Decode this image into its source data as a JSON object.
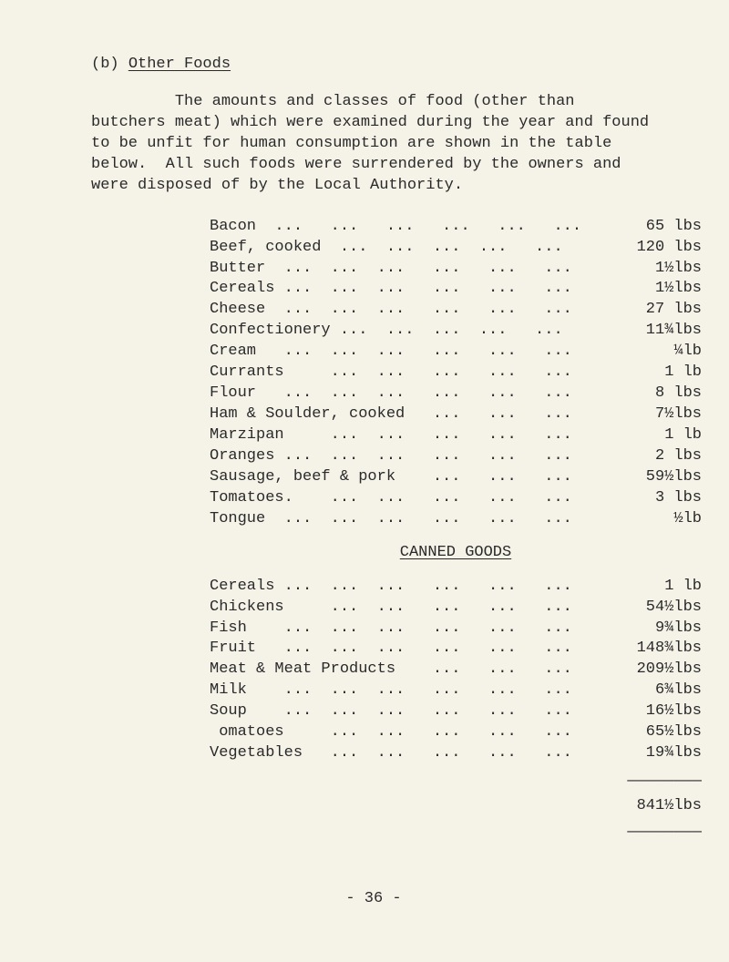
{
  "section": {
    "prefix": "(b) ",
    "title": "Other Foods"
  },
  "paragraph": "         The amounts and classes of food (other than\nbutchers meat) which were examined during the year and found\nto be unfit for human consumption are shown in the table\nbelow.  All such foods were surrendered by the owners and\nwere disposed of by the Local Authority.",
  "table1": [
    {
      "label": "Bacon  ...   ...   ...   ...   ...   ...",
      "wt": "65 lbs"
    },
    {
      "label": "Beef, cooked  ...  ...  ...  ...   ...",
      "wt": "120 lbs"
    },
    {
      "label": "Butter  ...  ...  ...   ...   ...   ...",
      "wt": "1½lbs"
    },
    {
      "label": "Cereals ...  ...  ...   ...   ...   ...",
      "wt": "1½lbs"
    },
    {
      "label": "Cheese  ...  ...  ...   ...   ...   ...",
      "wt": "27 lbs"
    },
    {
      "label": "Confectionery ...  ...  ...  ...   ...",
      "wt": "11¾lbs"
    },
    {
      "label": "Cream   ...  ...  ...   ...   ...   ...",
      "wt": "¼lb"
    },
    {
      "label": "Currants     ...  ...   ...   ...   ...",
      "wt": "1 lb"
    },
    {
      "label": "Flour   ...  ...  ...   ...   ...   ...",
      "wt": "8 lbs"
    },
    {
      "label": "Ham & Soulder, cooked   ...   ...   ...",
      "wt": "7½lbs"
    },
    {
      "label": "Marzipan     ...  ...   ...   ...   ...",
      "wt": "1 lb"
    },
    {
      "label": "Oranges ...  ...  ...   ...   ...   ...",
      "wt": "2 lbs"
    },
    {
      "label": "Sausage, beef & pork    ...   ...   ...",
      "wt": "59½lbs"
    },
    {
      "label": "Tomatoes.    ...  ...   ...   ...   ...",
      "wt": "3 lbs"
    },
    {
      "label": "Tongue  ...  ...  ...   ...   ...   ...",
      "wt": "½lb"
    }
  ],
  "subheading": "CANNED GOODS",
  "table2": [
    {
      "label": "Cereals ...  ...  ...   ...   ...   ...",
      "wt": "1 lb"
    },
    {
      "label": "Chickens     ...  ...   ...   ...   ...",
      "wt": "54½lbs"
    },
    {
      "label": "Fish    ...  ...  ...   ...   ...   ...",
      "wt": "9¾lbs"
    },
    {
      "label": "Fruit   ...  ...  ...   ...   ...   ...",
      "wt": "148¾lbs"
    },
    {
      "label": "Meat & Meat Products    ...   ...   ...",
      "wt": "209½lbs"
    },
    {
      "label": "Milk    ...  ...  ...   ...   ...   ...",
      "wt": "6¾lbs"
    },
    {
      "label": "Soup    ...  ...  ...   ...   ...   ...",
      "wt": "16½lbs"
    },
    {
      "label": " omatoes     ...  ...   ...   ...   ...",
      "wt": "65½lbs"
    },
    {
      "label": "Vegetables   ...  ...   ...   ...   ...",
      "wt": "19¾lbs"
    }
  ],
  "rule": "————————",
  "total": "841½lbs",
  "rule2": "————————",
  "pagenum": "- 36 -"
}
